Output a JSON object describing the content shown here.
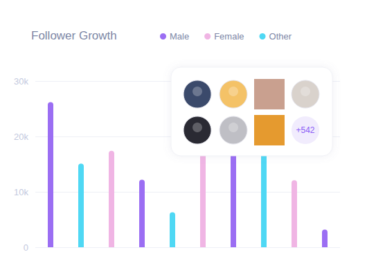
{
  "chart_data": {
    "type": "bar",
    "title": "Follower Growth",
    "categories": [
      null,
      null,
      null,
      null,
      null,
      null,
      null,
      null,
      null,
      null
    ],
    "series": [
      {
        "name": "Male",
        "color": "#9b6ef3",
        "values": [
          26200,
          null,
          null,
          12200,
          null,
          null,
          18000,
          null,
          null,
          3200
        ]
      },
      {
        "name": "Female",
        "color": "#f0b5e4",
        "values": [
          null,
          null,
          17400,
          null,
          null,
          17000,
          null,
          null,
          12100,
          null
        ]
      },
      {
        "name": "Other",
        "color": "#4fd8f4",
        "values": [
          null,
          15100,
          null,
          null,
          6300,
          null,
          null,
          18000,
          null,
          null
        ]
      }
    ],
    "ylim": [
      0,
      30000
    ],
    "yticks": [
      0,
      {
        "value": 10000,
        "label": "10k"
      },
      {
        "value": 20000,
        "label": "20k"
      },
      {
        "value": 30000,
        "label": "30k"
      }
    ],
    "grid": true,
    "legend": "top",
    "tick_labels": "y",
    "annotations": [
      "+542"
    ]
  }
}
